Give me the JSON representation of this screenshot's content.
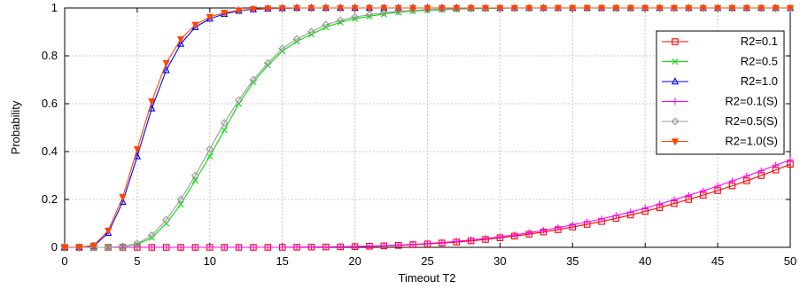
{
  "chart_data": {
    "type": "line",
    "title": "",
    "xlabel": "Timeout T2",
    "ylabel": "Probability",
    "xlim": [
      0,
      50
    ],
    "ylim": [
      0,
      1
    ],
    "xticks": [
      "0",
      "5",
      "10",
      "15",
      "20",
      "25",
      "30",
      "35",
      "40",
      "45",
      "50"
    ],
    "yticks": [
      "0",
      "0.2",
      "0.4",
      "0.6",
      "0.8",
      "1"
    ],
    "grid": true,
    "legend_position": "top-right",
    "x": [
      0,
      1,
      2,
      3,
      4,
      5,
      6,
      7,
      8,
      9,
      10,
      11,
      12,
      13,
      14,
      15,
      16,
      17,
      18,
      19,
      20,
      21,
      22,
      23,
      24,
      25,
      26,
      27,
      28,
      29,
      30,
      31,
      32,
      33,
      34,
      35,
      36,
      37,
      38,
      39,
      40,
      41,
      42,
      43,
      44,
      45,
      46,
      47,
      48,
      49,
      50
    ],
    "series": [
      {
        "name": "R2=0.1",
        "color": "#ff0000",
        "marker": "square",
        "values": [
          0,
          0,
          0,
          0,
          0,
          0,
          0,
          0,
          0,
          0,
          0,
          0,
          0,
          0,
          0,
          0,
          0.0005,
          0.001,
          0.0015,
          0.002,
          0.003,
          0.0045,
          0.006,
          0.008,
          0.011,
          0.014,
          0.018,
          0.022,
          0.027,
          0.033,
          0.04,
          0.047,
          0.055,
          0.064,
          0.074,
          0.085,
          0.096,
          0.108,
          0.121,
          0.135,
          0.15,
          0.166,
          0.183,
          0.2,
          0.218,
          0.237,
          0.257,
          0.278,
          0.3,
          0.323,
          0.347
        ]
      },
      {
        "name": "R2=0.5",
        "color": "#00e000",
        "marker": "x",
        "values": [
          0,
          0,
          0,
          0,
          0.003,
          0.012,
          0.04,
          0.1,
          0.18,
          0.28,
          0.38,
          0.49,
          0.6,
          0.69,
          0.76,
          0.82,
          0.86,
          0.89,
          0.92,
          0.94,
          0.955,
          0.965,
          0.975,
          0.982,
          0.987,
          0.99,
          0.993,
          0.995,
          0.997,
          0.998,
          0.999,
          1,
          1,
          1,
          1,
          1,
          1,
          1,
          1,
          1,
          1,
          1,
          1,
          1,
          1,
          1,
          1,
          1,
          1,
          1,
          1
        ]
      },
      {
        "name": "R2=1.0",
        "color": "#0000ff",
        "marker": "triangle-up",
        "values": [
          0,
          0,
          0.005,
          0.06,
          0.19,
          0.38,
          0.58,
          0.74,
          0.85,
          0.92,
          0.955,
          0.975,
          0.988,
          0.994,
          0.997,
          0.999,
          1,
          1,
          1,
          1,
          1,
          1,
          1,
          1,
          1,
          1,
          1,
          1,
          1,
          1,
          1,
          1,
          1,
          1,
          1,
          1,
          1,
          1,
          1,
          1,
          1,
          1,
          1,
          1,
          1,
          1,
          1,
          1,
          1,
          1,
          1
        ]
      },
      {
        "name": "R2=0.1(S)",
        "color": "#ff00ff",
        "marker": "plus",
        "values": [
          0,
          0,
          0,
          0,
          0,
          0,
          0,
          0,
          0,
          0,
          0,
          0,
          0,
          0,
          0,
          0,
          0.0006,
          0.0012,
          0.0018,
          0.0025,
          0.0035,
          0.005,
          0.007,
          0.0095,
          0.0125,
          0.016,
          0.02,
          0.025,
          0.031,
          0.037,
          0.044,
          0.052,
          0.061,
          0.071,
          0.082,
          0.094,
          0.106,
          0.119,
          0.133,
          0.148,
          0.164,
          0.181,
          0.199,
          0.217,
          0.236,
          0.256,
          0.277,
          0.298,
          0.32,
          0.343,
          0.365
        ]
      },
      {
        "name": "R2=0.5(S)",
        "color": "#999999",
        "marker": "diamond",
        "values": [
          0,
          0,
          0,
          0,
          0.004,
          0.015,
          0.05,
          0.115,
          0.2,
          0.3,
          0.41,
          0.52,
          0.615,
          0.7,
          0.77,
          0.83,
          0.87,
          0.9,
          0.93,
          0.948,
          0.962,
          0.972,
          0.98,
          0.986,
          0.99,
          0.993,
          0.995,
          0.997,
          0.998,
          0.999,
          1,
          1,
          1,
          1,
          1,
          1,
          1,
          1,
          1,
          1,
          1,
          1,
          1,
          1,
          1,
          1,
          1,
          1,
          1,
          1,
          1
        ]
      },
      {
        "name": "R2=1.0(S)",
        "color": "#ff4400",
        "marker": "triangle-down",
        "values": [
          0,
          0,
          0.008,
          0.07,
          0.21,
          0.41,
          0.61,
          0.77,
          0.87,
          0.93,
          0.963,
          0.98,
          0.99,
          0.995,
          0.998,
          0.999,
          1,
          1,
          1,
          1,
          1,
          1,
          1,
          1,
          1,
          1,
          1,
          1,
          1,
          1,
          1,
          1,
          1,
          1,
          1,
          1,
          1,
          1,
          1,
          1,
          1,
          1,
          1,
          1,
          1,
          1,
          1,
          1,
          1,
          1,
          1
        ]
      }
    ]
  }
}
